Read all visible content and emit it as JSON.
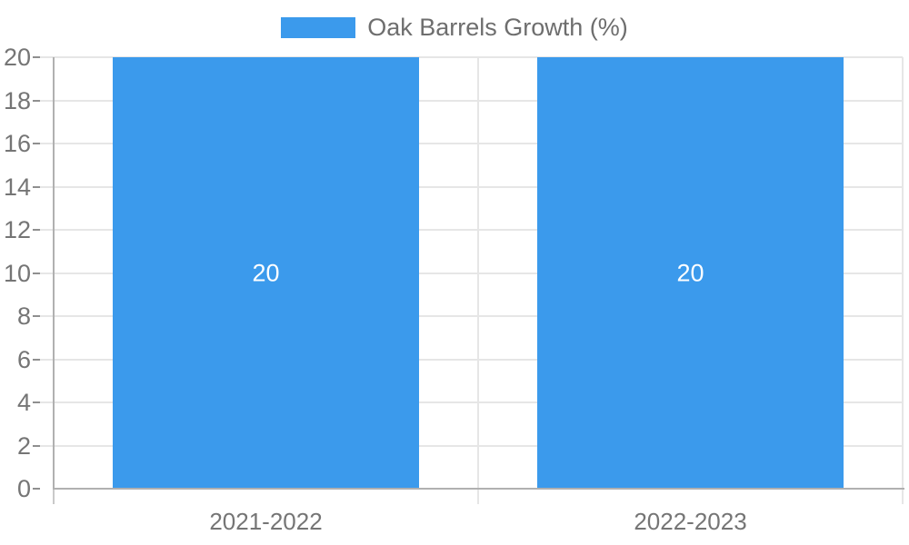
{
  "chart_data": {
    "type": "bar",
    "title": "Oak Barrels Growth (%)",
    "legend": {
      "entries": [
        "Oak Barrels Growth (%)"
      ],
      "position": "top-center"
    },
    "categories": [
      "2021-2022",
      "2022-2023"
    ],
    "series": [
      {
        "name": "Oak Barrels Growth (%)",
        "values": [
          20,
          20
        ],
        "data_labels": [
          "20",
          "20"
        ]
      }
    ],
    "xlabel": "",
    "ylabel": "",
    "ylim": [
      0,
      20
    ],
    "yticks": [
      0,
      2,
      4,
      6,
      8,
      10,
      12,
      14,
      16,
      18,
      20
    ],
    "grid": true,
    "colors": {
      "bar": "#3B9AEC",
      "axis": "#b0b0b0",
      "axis_stub": "#c9c9c9",
      "gridline": "#e6e6e6",
      "tick": "#8f8f8f",
      "axis_label": "#757575",
      "legend_text": "#6e6e6e",
      "bar_label_text": "#ffffff",
      "background": "#ffffff"
    }
  }
}
